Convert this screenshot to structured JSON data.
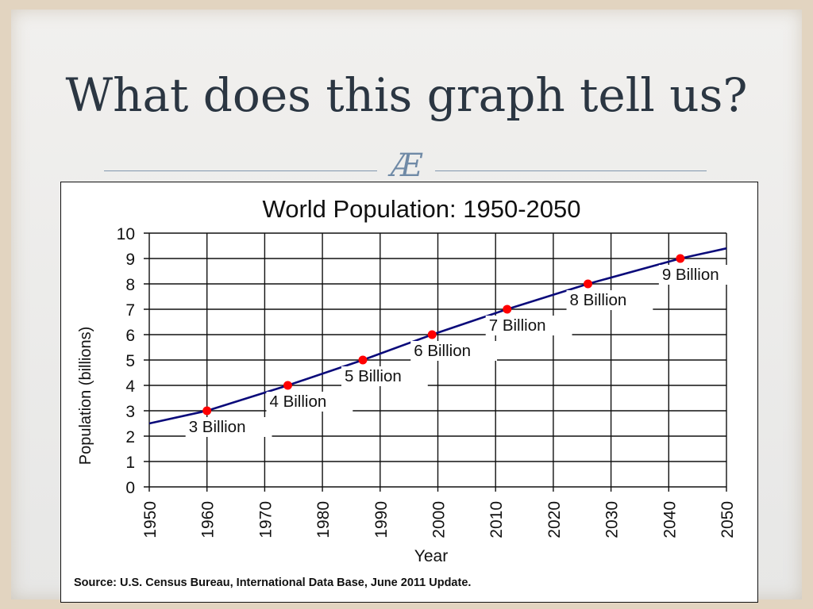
{
  "slide": {
    "title": "What does this graph tell us?",
    "ornament": "Æ",
    "ornament_icon": "decorative-flourish-icon"
  },
  "chart_data": {
    "type": "line",
    "title": "World Population: 1950-2050",
    "xlabel": "Year",
    "ylabel": "Population  (billions)",
    "xlim": [
      1950,
      2050
    ],
    "ylim": [
      0,
      10
    ],
    "x_ticks": [
      1950,
      1960,
      1970,
      1980,
      1990,
      2000,
      2010,
      2020,
      2030,
      2040,
      2050
    ],
    "y_ticks": [
      0,
      1,
      2,
      3,
      4,
      5,
      6,
      7,
      8,
      9,
      10
    ],
    "grid": true,
    "series": [
      {
        "line_color": "#0a0a7a",
        "x": [
          1950,
          1960,
          1974,
          1987,
          1999,
          2012,
          2026,
          2042,
          2050
        ],
        "y": [
          2.5,
          3.0,
          4.0,
          5.0,
          6.0,
          7.0,
          8.0,
          9.0,
          9.4
        ]
      }
    ],
    "milestones": [
      {
        "year": 1960,
        "value": 3,
        "label": "3 Billion"
      },
      {
        "year": 1974,
        "value": 4,
        "label": "4 Billion"
      },
      {
        "year": 1987,
        "value": 5,
        "label": "5 Billion"
      },
      {
        "year": 1999,
        "value": 6,
        "label": "6 Billion"
      },
      {
        "year": 2012,
        "value": 7,
        "label": "7 Billion"
      },
      {
        "year": 2026,
        "value": 8,
        "label": "8 Billion"
      },
      {
        "year": 2042,
        "value": 9,
        "label": "9 Billion"
      }
    ],
    "marker_color": "#ff0000",
    "source": "Source: U.S. Census Bureau, International Data Base, June 2011 Update."
  }
}
